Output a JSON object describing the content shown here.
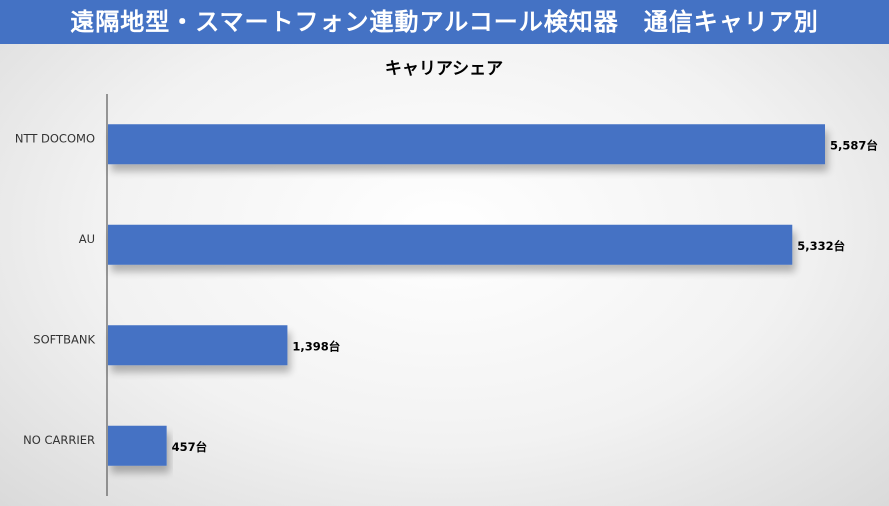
{
  "header": {
    "title": "遠隔地型・スマートフォン連動アルコール検知器　通信キャリア別"
  },
  "colors": {
    "header_bg": "#4472c4",
    "bar": "#4472c4",
    "axis": "#595959"
  },
  "chart_data": {
    "type": "bar",
    "orientation": "horizontal",
    "title": "キャリアシェア",
    "categories": [
      "NTT DOCOMO",
      "AU",
      "SOFTBANK",
      "NO CARRIER"
    ],
    "values": [
      5587,
      5332,
      1398,
      457
    ],
    "data_labels": [
      "5,587台",
      "5,332台",
      "1,398台",
      "457台"
    ],
    "unit": "台",
    "xlabel": "",
    "ylabel": "",
    "xlim": [
      0,
      6000
    ],
    "grid": false,
    "legend": "none"
  }
}
